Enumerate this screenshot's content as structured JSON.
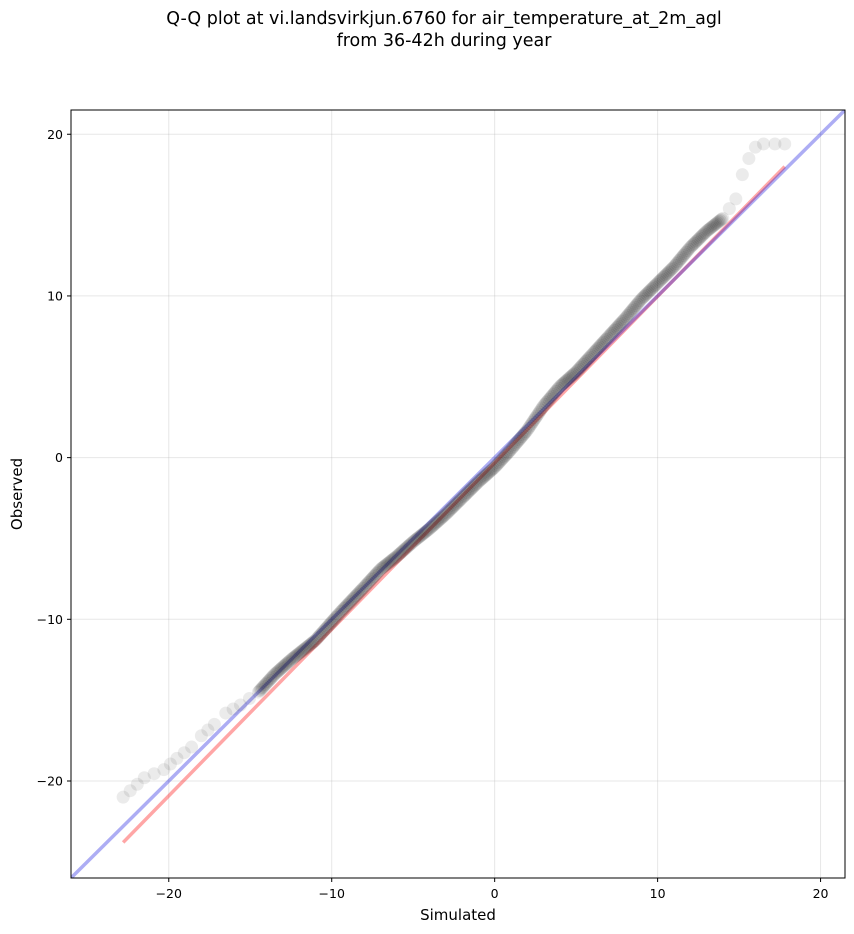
{
  "chart_data": {
    "type": "scatter",
    "title": "Q-Q plot at vi.landsvirkjun.6760 for air_temperature_at_2m_agl",
    "subtitle": "from 36-42h during year",
    "xlabel": "Simulated",
    "ylabel": "Observed",
    "xlim": [
      -26,
      21.5
    ],
    "ylim": [
      -26,
      21.5
    ],
    "xticks": [
      -20,
      -10,
      0,
      10,
      20
    ],
    "yticks": [
      -20,
      -10,
      0,
      10,
      20
    ],
    "xtick_labels": [
      "−20",
      "−10",
      "0",
      "10",
      "20"
    ],
    "ytick_labels": [
      "−20",
      "−10",
      "0",
      "10",
      "20"
    ],
    "grid": true,
    "colors": {
      "points": "#000000",
      "identity_line": "#0000dd",
      "fit_line": "#ff0000"
    },
    "identity_line": {
      "x": [
        -26,
        21.5
      ],
      "y": [
        -26,
        21.5
      ]
    },
    "fit_line": {
      "x": [
        -22.8,
        17.8
      ],
      "y": [
        -23.8,
        18.0
      ]
    },
    "quantiles": {
      "x": [
        -22.8,
        -21.5,
        -20.3,
        -19.5,
        -18.6,
        -18.0,
        -17.2,
        -16.5,
        -15.6,
        -14.5,
        -13.5,
        -12.5,
        -11.0,
        -9.5,
        -8.0,
        -7.0,
        -6.0,
        -5.0,
        -4.0,
        -3.0,
        -2.0,
        -1.0,
        0.0,
        1.0,
        2.0,
        3.0,
        4.0,
        5.0,
        6.0,
        7.0,
        8.0,
        9.0,
        10.0,
        11.0,
        12.0,
        13.0,
        14.0,
        14.8,
        15.2,
        15.6,
        16.0,
        16.5,
        17.2,
        17.8
      ],
      "y": [
        -21.0,
        -19.8,
        -19.3,
        -18.6,
        -17.9,
        -17.2,
        -16.5,
        -15.8,
        -15.3,
        -14.5,
        -13.4,
        -12.5,
        -11.3,
        -9.6,
        -8.0,
        -6.9,
        -6.1,
        -5.2,
        -4.4,
        -3.5,
        -2.5,
        -1.5,
        -0.6,
        0.5,
        1.7,
        3.2,
        4.4,
        5.3,
        6.4,
        7.5,
        8.6,
        9.8,
        10.8,
        11.8,
        13.0,
        14.0,
        14.8,
        16.0,
        17.5,
        18.5,
        19.2,
        19.4,
        19.4,
        19.4
      ]
    }
  }
}
